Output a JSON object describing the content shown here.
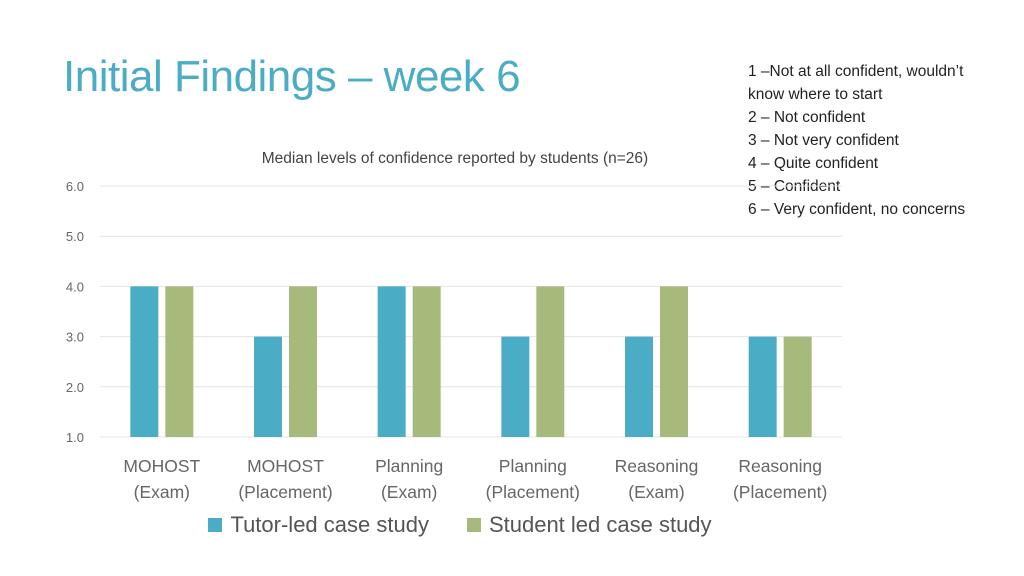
{
  "slide": {
    "title": "Initial Findings – week 6"
  },
  "scale_key": [
    "1 –Not at all confident, wouldn’t know where to start",
    "2 – Not confident",
    "3 – Not very confident",
    "4 – Quite confident",
    "5 – Confident",
    "6 – Very confident, no concerns"
  ],
  "colors": {
    "title": "#4bacc6",
    "tutor": "#4bacc6",
    "student": "#a6ba7b",
    "grid": "#e4e4e4",
    "axis_text": "#666666"
  },
  "chart_data": {
    "type": "bar",
    "title": "Median levels of confidence reported by students (n=26)",
    "categories": [
      [
        "MOHOST",
        "(Exam)"
      ],
      [
        "MOHOST",
        "(Placement)"
      ],
      [
        "Planning",
        "(Exam)"
      ],
      [
        "Planning",
        "(Placement)"
      ],
      [
        "Reasoning",
        "(Exam)"
      ],
      [
        "Reasoning",
        "(Placement)"
      ]
    ],
    "series": [
      {
        "name": "Tutor-led case study",
        "values": [
          4,
          3,
          4,
          3,
          3,
          3
        ]
      },
      {
        "name": "Student led case study",
        "values": [
          4,
          4,
          4,
          4,
          4,
          3
        ]
      }
    ],
    "ylim": [
      1,
      6
    ],
    "yticks": [
      "1.0",
      "2.0",
      "3.0",
      "4.0",
      "5.0",
      "6.0"
    ],
    "grid": true,
    "legend": "bottom-center"
  }
}
